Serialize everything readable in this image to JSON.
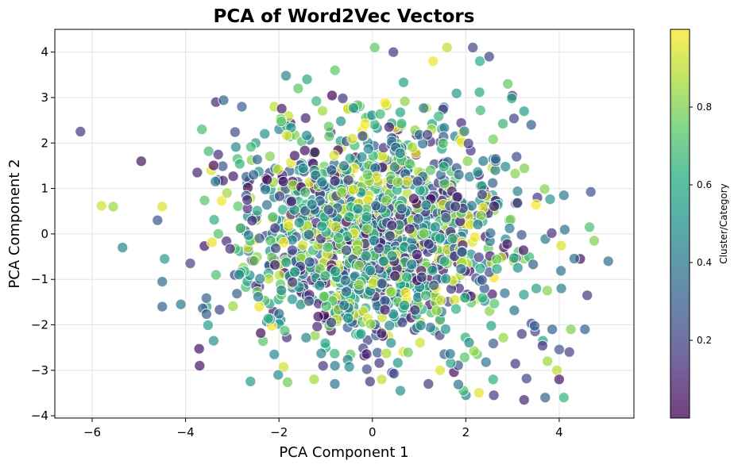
{
  "chart_data": {
    "type": "scatter",
    "title": "PCA of Word2Vec Vectors",
    "xlabel": "PCA Component 1",
    "ylabel": "PCA Component 2",
    "xlim": [
      -6.8,
      5.6
    ],
    "ylim": [
      -4.05,
      4.5
    ],
    "xticks": [
      -6,
      -4,
      -2,
      0,
      2,
      4
    ],
    "yticks": [
      -4,
      -3,
      -2,
      -1,
      0,
      1,
      2,
      3,
      4
    ],
    "grid": true,
    "colormap": "viridis",
    "marker_alpha": 0.7,
    "marker_edge_color": "#ffffff",
    "colorbar": {
      "label": "Cluster/Category",
      "range": [
        0,
        1
      ],
      "ticks": [
        0.2,
        0.4,
        0.6,
        0.8
      ]
    },
    "points": [
      [
        -6.25,
        2.25,
        0.15
      ],
      [
        -4.95,
        1.6,
        0.05
      ],
      [
        -5.8,
        0.62,
        0.93
      ],
      [
        -5.55,
        0.6,
        0.85
      ],
      [
        -5.35,
        -0.3,
        0.45
      ],
      [
        -4.6,
        0.3,
        0.25
      ],
      [
        -4.5,
        0.6,
        0.95
      ],
      [
        -4.45,
        -0.55,
        0.55
      ],
      [
        -4.5,
        -1.05,
        0.35
      ],
      [
        -4.5,
        -1.6,
        0.3
      ],
      [
        -4.1,
        -1.55,
        0.4
      ],
      [
        -3.9,
        -0.65,
        0.2
      ],
      [
        -3.75,
        1.35,
        0.1
      ],
      [
        -3.45,
        1.4,
        0.95
      ],
      [
        -3.65,
        2.3,
        0.7
      ],
      [
        -3.35,
        2.9,
        0.1
      ],
      [
        -3.7,
        -2.9,
        0.05
      ],
      [
        -3.4,
        -2.35,
        0.5
      ],
      [
        -3.55,
        -1.6,
        0.6
      ],
      [
        -2.5,
        2.0,
        0.55
      ],
      [
        -2.1,
        -2.65,
        0.45
      ],
      [
        -2.1,
        2.8,
        0.9
      ],
      [
        -1.4,
        3.4,
        0.6
      ],
      [
        -1.0,
        -2.5,
        0.6
      ],
      [
        -0.8,
        3.6,
        0.75
      ],
      [
        0.05,
        4.1,
        0.75
      ],
      [
        0.45,
        4.0,
        0.15
      ],
      [
        1.3,
        3.8,
        0.98
      ],
      [
        1.6,
        4.1,
        0.9
      ],
      [
        2.15,
        4.1,
        0.2
      ],
      [
        2.5,
        3.9,
        0.2
      ],
      [
        2.3,
        3.8,
        0.62
      ],
      [
        2.9,
        3.3,
        0.75
      ],
      [
        3.25,
        2.7,
        0.55
      ],
      [
        3.4,
        2.4,
        0.3
      ],
      [
        4.1,
        0.85,
        0.4
      ],
      [
        4.65,
        0.15,
        0.7
      ],
      [
        4.75,
        -0.15,
        0.8
      ],
      [
        5.05,
        -0.6,
        0.35
      ],
      [
        4.45,
        -0.55,
        0.05
      ],
      [
        4.6,
        -1.35,
        0.15
      ],
      [
        4.55,
        -2.1,
        0.3
      ],
      [
        4.25,
        -2.1,
        0.8
      ],
      [
        3.85,
        -2.1,
        0.3
      ],
      [
        3.65,
        -2.35,
        0.6
      ],
      [
        3.75,
        -2.8,
        0.85
      ],
      [
        3.95,
        -3.0,
        0.9
      ],
      [
        4.0,
        -3.2,
        0.05
      ],
      [
        4.1,
        -3.6,
        0.65
      ],
      [
        3.7,
        -3.6,
        0.3
      ],
      [
        3.25,
        -3.65,
        0.1
      ],
      [
        2.6,
        -3.55,
        0.15
      ],
      [
        2.0,
        -3.55,
        0.45
      ],
      [
        1.95,
        -3.45,
        0.7
      ],
      [
        1.2,
        -3.3,
        0.15
      ],
      [
        0.6,
        -3.45,
        0.5
      ],
      [
        0.2,
        -3.2,
        0.9
      ],
      [
        -0.8,
        -2.9,
        0.4
      ],
      [
        1.45,
        -3.0,
        0.95
      ],
      [
        3.2,
        -2.2,
        0.15
      ]
    ],
    "cluster": {
      "count": 1500,
      "seed": 7,
      "std_x": 1.55,
      "std_y": 1.25,
      "x_range": [
        -4.0,
        4.8
      ],
      "y_range": [
        -3.5,
        3.5
      ]
    }
  }
}
